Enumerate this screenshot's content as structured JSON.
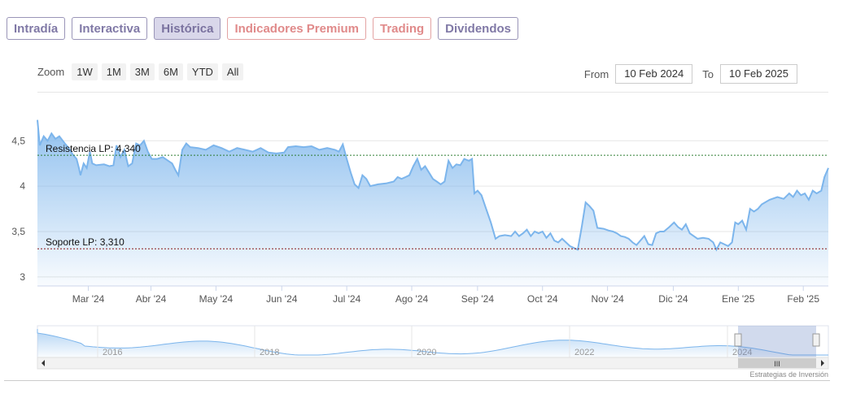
{
  "tabs": [
    {
      "label": "Intradía",
      "style": "normal"
    },
    {
      "label": "Interactiva",
      "style": "normal"
    },
    {
      "label": "Histórica",
      "style": "active"
    },
    {
      "label": "Indicadores Premium",
      "style": "premium"
    },
    {
      "label": "Trading",
      "style": "premium"
    },
    {
      "label": "Dividendos",
      "style": "normal"
    }
  ],
  "zoom": {
    "label": "Zoom",
    "buttons": [
      "1W",
      "1M",
      "3M",
      "6M",
      "YTD",
      "All"
    ]
  },
  "range": {
    "from_label": "From",
    "from_value": "10 Feb 2024",
    "to_label": "To",
    "to_value": "10 Feb 2025"
  },
  "credit": "Estrategias de Inversión",
  "colors": {
    "line": "#7cb5ec",
    "resistance": "#2e7d32",
    "support": "#8b1a1a"
  },
  "chart_data": {
    "type": "area",
    "title": "",
    "xlabel": "",
    "ylabel": "",
    "ylim": [
      2.9,
      4.78
    ],
    "y_ticks": [
      3,
      3.5,
      4,
      4.5
    ],
    "y_tick_labels": [
      "3",
      "3,5",
      "4",
      "4,5"
    ],
    "x_range": [
      2024.105,
      2025.115
    ],
    "x_ticks": [
      {
        "label": "Mar '24",
        "x": 2024.17
      },
      {
        "label": "Abr '24",
        "x": 2024.25
      },
      {
        "label": "May '24",
        "x": 2024.333
      },
      {
        "label": "Jun '24",
        "x": 2024.417
      },
      {
        "label": "Jul '24",
        "x": 2024.5
      },
      {
        "label": "Ago '24",
        "x": 2024.583
      },
      {
        "label": "Sep '24",
        "x": 2024.667
      },
      {
        "label": "Oct '24",
        "x": 2024.75
      },
      {
        "label": "Nov '24",
        "x": 2024.833
      },
      {
        "label": "Dic '24",
        "x": 2024.917
      },
      {
        "label": "Ene '25",
        "x": 2025.0
      },
      {
        "label": "Feb '25",
        "x": 2025.083
      }
    ],
    "annotations": [
      {
        "label": "Resistencia LP: 4,340",
        "value": 4.34,
        "kind": "resistance"
      },
      {
        "label": "Soporte LP: 3,310",
        "value": 3.31,
        "kind": "support"
      }
    ],
    "grid": true,
    "series": [
      {
        "values": [
          [
            2024.105,
            4.73
          ],
          [
            2024.108,
            4.45
          ],
          [
            2024.113,
            4.55
          ],
          [
            2024.118,
            4.5
          ],
          [
            2024.123,
            4.58
          ],
          [
            2024.128,
            4.52
          ],
          [
            2024.133,
            4.55
          ],
          [
            2024.14,
            4.47
          ],
          [
            2024.145,
            4.42
          ],
          [
            2024.15,
            4.35
          ],
          [
            2024.155,
            4.3
          ],
          [
            2024.158,
            4.2
          ],
          [
            2024.16,
            4.12
          ],
          [
            2024.164,
            4.25
          ],
          [
            2024.168,
            4.2
          ],
          [
            2024.172,
            4.38
          ],
          [
            2024.175,
            4.25
          ],
          [
            2024.18,
            4.23
          ],
          [
            2024.19,
            4.24
          ],
          [
            2024.197,
            4.22
          ],
          [
            2024.202,
            4.23
          ],
          [
            2024.206,
            4.45
          ],
          [
            2024.211,
            4.32
          ],
          [
            2024.216,
            4.4
          ],
          [
            2024.221,
            4.22
          ],
          [
            2024.226,
            4.25
          ],
          [
            2024.231,
            4.47
          ],
          [
            2024.236,
            4.45
          ],
          [
            2024.241,
            4.5
          ],
          [
            2024.246,
            4.38
          ],
          [
            2024.251,
            4.3
          ],
          [
            2024.258,
            4.3
          ],
          [
            2024.265,
            4.32
          ],
          [
            2024.272,
            4.28
          ],
          [
            2024.277,
            4.25
          ],
          [
            2024.281,
            4.18
          ],
          [
            2024.285,
            4.12
          ],
          [
            2024.29,
            4.4
          ],
          [
            2024.295,
            4.47
          ],
          [
            2024.3,
            4.43
          ],
          [
            2024.31,
            4.42
          ],
          [
            2024.32,
            4.4
          ],
          [
            2024.33,
            4.45
          ],
          [
            2024.34,
            4.42
          ],
          [
            2024.35,
            4.38
          ],
          [
            2024.36,
            4.42
          ],
          [
            2024.37,
            4.4
          ],
          [
            2024.38,
            4.38
          ],
          [
            2024.39,
            4.42
          ],
          [
            2024.4,
            4.37
          ],
          [
            2024.41,
            4.36
          ],
          [
            2024.42,
            4.37
          ],
          [
            2024.425,
            4.43
          ],
          [
            2024.435,
            4.44
          ],
          [
            2024.445,
            4.43
          ],
          [
            2024.455,
            4.44
          ],
          [
            2024.465,
            4.4
          ],
          [
            2024.475,
            4.42
          ],
          [
            2024.485,
            4.4
          ],
          [
            2024.49,
            4.38
          ],
          [
            2024.495,
            4.46
          ],
          [
            2024.5,
            4.3
          ],
          [
            2024.505,
            4.15
          ],
          [
            2024.51,
            4.02
          ],
          [
            2024.515,
            3.98
          ],
          [
            2024.52,
            4.12
          ],
          [
            2024.525,
            4.08
          ],
          [
            2024.53,
            4.0
          ],
          [
            2024.54,
            4.02
          ],
          [
            2024.55,
            4.03
          ],
          [
            2024.56,
            4.05
          ],
          [
            2024.565,
            4.1
          ],
          [
            2024.57,
            4.08
          ],
          [
            2024.575,
            4.1
          ],
          [
            2024.58,
            4.12
          ],
          [
            2024.585,
            4.22
          ],
          [
            2024.59,
            4.3
          ],
          [
            2024.595,
            4.18
          ],
          [
            2024.6,
            4.22
          ],
          [
            2024.61,
            4.08
          ],
          [
            2024.615,
            4.05
          ],
          [
            2024.62,
            4.02
          ],
          [
            2024.625,
            4.05
          ],
          [
            2024.63,
            4.28
          ],
          [
            2024.635,
            4.2
          ],
          [
            2024.64,
            4.24
          ],
          [
            2024.645,
            4.23
          ],
          [
            2024.65,
            4.3
          ],
          [
            2024.656,
            4.28
          ],
          [
            2024.66,
            4.3
          ],
          [
            2024.663,
            3.92
          ],
          [
            2024.667,
            3.95
          ],
          [
            2024.672,
            3.9
          ],
          [
            2024.678,
            3.75
          ],
          [
            2024.684,
            3.6
          ],
          [
            2024.69,
            3.42
          ],
          [
            2024.695,
            3.45
          ],
          [
            2024.702,
            3.46
          ],
          [
            2024.71,
            3.45
          ],
          [
            2024.715,
            3.5
          ],
          [
            2024.72,
            3.45
          ],
          [
            2024.725,
            3.48
          ],
          [
            2024.73,
            3.52
          ],
          [
            2024.735,
            3.45
          ],
          [
            2024.74,
            3.5
          ],
          [
            2024.745,
            3.48
          ],
          [
            2024.75,
            3.5
          ],
          [
            2024.755,
            3.43
          ],
          [
            2024.76,
            3.48
          ],
          [
            2024.765,
            3.4
          ],
          [
            2024.77,
            3.38
          ],
          [
            2024.775,
            3.42
          ],
          [
            2024.78,
            3.38
          ],
          [
            2024.785,
            3.34
          ],
          [
            2024.79,
            3.32
          ],
          [
            2024.795,
            3.3
          ],
          [
            2024.8,
            3.55
          ],
          [
            2024.805,
            3.82
          ],
          [
            2024.81,
            3.78
          ],
          [
            2024.815,
            3.73
          ],
          [
            2024.82,
            3.54
          ],
          [
            2024.828,
            3.53
          ],
          [
            2024.835,
            3.51
          ],
          [
            2024.84,
            3.5
          ],
          [
            2024.845,
            3.48
          ],
          [
            2024.85,
            3.45
          ],
          [
            2024.855,
            3.44
          ],
          [
            2024.86,
            3.42
          ],
          [
            2024.865,
            3.38
          ],
          [
            2024.87,
            3.35
          ],
          [
            2024.875,
            3.4
          ],
          [
            2024.88,
            3.45
          ],
          [
            2024.885,
            3.36
          ],
          [
            2024.89,
            3.35
          ],
          [
            2024.895,
            3.48
          ],
          [
            2024.9,
            3.5
          ],
          [
            2024.905,
            3.5
          ],
          [
            2024.912,
            3.55
          ],
          [
            2024.918,
            3.6
          ],
          [
            2024.923,
            3.55
          ],
          [
            2024.928,
            3.52
          ],
          [
            2024.933,
            3.58
          ],
          [
            2024.938,
            3.48
          ],
          [
            2024.943,
            3.45
          ],
          [
            2024.948,
            3.42
          ],
          [
            2024.955,
            3.43
          ],
          [
            2024.962,
            3.42
          ],
          [
            2024.968,
            3.38
          ],
          [
            2024.972,
            3.3
          ],
          [
            2024.977,
            3.38
          ],
          [
            2024.982,
            3.36
          ],
          [
            2024.987,
            3.34
          ],
          [
            2024.992,
            3.38
          ],
          [
            2024.996,
            3.6
          ],
          [
            2025.0,
            3.58
          ],
          [
            2025.005,
            3.62
          ],
          [
            2025.01,
            3.52
          ],
          [
            2025.015,
            3.75
          ],
          [
            2025.02,
            3.72
          ],
          [
            2025.025,
            3.75
          ],
          [
            2025.03,
            3.8
          ],
          [
            2025.04,
            3.85
          ],
          [
            2025.05,
            3.88
          ],
          [
            2025.058,
            3.86
          ],
          [
            2025.065,
            3.92
          ],
          [
            2025.07,
            3.88
          ],
          [
            2025.075,
            3.95
          ],
          [
            2025.08,
            3.9
          ],
          [
            2025.085,
            3.92
          ],
          [
            2025.09,
            3.85
          ],
          [
            2025.095,
            3.95
          ],
          [
            2025.1,
            3.92
          ],
          [
            2025.106,
            3.95
          ],
          [
            2025.11,
            4.1
          ],
          [
            2025.115,
            4.2
          ]
        ]
      }
    ]
  },
  "navigator": {
    "year_labels": [
      "2016",
      "2018",
      "2020",
      "2022",
      "2024"
    ],
    "scroll_grip": "III"
  }
}
